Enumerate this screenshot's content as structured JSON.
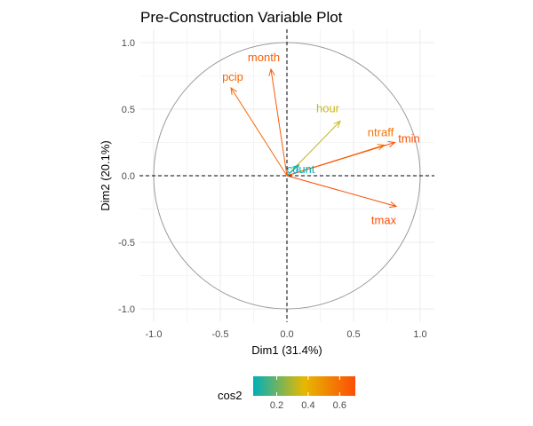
{
  "chart_data": {
    "type": "scatter",
    "subtype": "pca-variable-correlation-circle",
    "title": "Pre-Construction Variable Plot",
    "xlabel": "Dim1 (31.4%)",
    "ylabel": "Dim2 (20.1%)",
    "xlim": [
      -1.1,
      1.1
    ],
    "ylim": [
      -1.1,
      1.1
    ],
    "x_ticks": [
      -1.0,
      -0.5,
      0.0,
      0.5,
      1.0
    ],
    "x_tick_labels": [
      "-1.0",
      "-0.5",
      "0.0",
      "0.5",
      "1.0"
    ],
    "y_ticks": [
      -1.0,
      -0.5,
      0.0,
      0.5,
      1.0
    ],
    "y_tick_labels": [
      "-1.0",
      "-0.5",
      "0.0",
      "0.5",
      "1.0"
    ],
    "grid": true,
    "unit_circle": true,
    "variables": [
      {
        "name": "month",
        "x": -0.12,
        "y": 0.8,
        "cos2": 0.65
      },
      {
        "name": "pcip",
        "x": -0.42,
        "y": 0.66,
        "cos2": 0.62
      },
      {
        "name": "hour",
        "x": 0.4,
        "y": 0.41,
        "cos2": 0.33
      },
      {
        "name": "ntraff",
        "x": 0.73,
        "y": 0.23,
        "cos2": 0.58
      },
      {
        "name": "tmin",
        "x": 0.81,
        "y": 0.25,
        "cos2": 0.69
      },
      {
        "name": "count",
        "x": 0.09,
        "y": 0.08,
        "cos2": 0.05
      },
      {
        "name": "tmax",
        "x": 0.82,
        "y": -0.23,
        "cos2": 0.7
      }
    ],
    "legend": {
      "title": "cos2",
      "position": "bottom",
      "ticks": [
        0.2,
        0.4,
        0.6
      ],
      "tick_labels": [
        "0.2",
        "0.4",
        "0.6"
      ],
      "range": [
        0.05,
        0.7
      ],
      "gradient_colors": [
        "#00AFBB",
        "#E7B800",
        "#FC4E07"
      ]
    }
  }
}
